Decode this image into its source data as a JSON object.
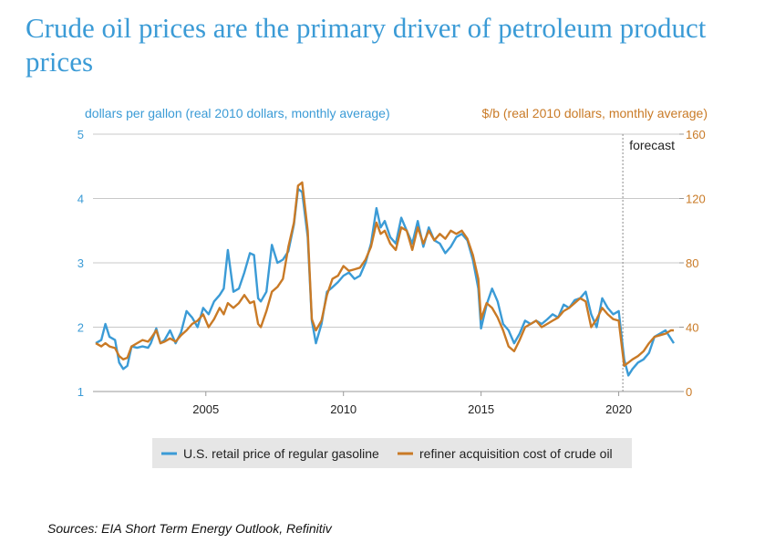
{
  "title": "Crude oil prices are the primary driver of petroleum product prices",
  "source": "Sources: EIA Short Term Energy Outlook, Refinitiv",
  "chart_data": {
    "type": "line",
    "ylabel_left": "dollars per gallon (real 2010 dollars, monthly average)",
    "ylabel_right": "$/b (real 2010 dollars, monthly average)",
    "y_left_lim": [
      1,
      5
    ],
    "y_left_ticks": [
      "1",
      "2",
      "3",
      "4",
      "5"
    ],
    "y_right_lim": [
      0,
      160
    ],
    "y_right_ticks": [
      "0",
      "40",
      "80",
      "120",
      "160"
    ],
    "xlim": [
      2000.9,
      2022.2
    ],
    "x_ticks": [
      "2005",
      "2010",
      "2015",
      "2020"
    ],
    "forecast_x": 2020.15,
    "forecast_label": "forecast",
    "grid": "horizontal",
    "legend_position": "bottom",
    "colors": {
      "left_axis": "#3b9bd6",
      "right_axis": "#c97a26",
      "gasoline": "#3b9bd6",
      "crude": "#c97a26",
      "grid": "#c8c8c8"
    },
    "series": [
      {
        "name": "U.S. retail price of regular gasoline",
        "axis": "left",
        "x": [
          2001.0,
          2001.2,
          2001.35,
          2001.5,
          2001.7,
          2001.85,
          2002.0,
          2002.15,
          2002.3,
          2002.5,
          2002.7,
          2002.9,
          2003.0,
          2003.2,
          2003.35,
          2003.5,
          2003.7,
          2003.9,
          2004.1,
          2004.3,
          2004.5,
          2004.7,
          2004.9,
          2005.1,
          2005.3,
          2005.5,
          2005.65,
          2005.8,
          2006.0,
          2006.2,
          2006.4,
          2006.6,
          2006.75,
          2006.9,
          2007.0,
          2007.2,
          2007.4,
          2007.6,
          2007.8,
          2008.0,
          2008.2,
          2008.35,
          2008.5,
          2008.7,
          2008.85,
          2009.0,
          2009.2,
          2009.4,
          2009.6,
          2009.8,
          2010.0,
          2010.2,
          2010.4,
          2010.6,
          2010.8,
          2011.0,
          2011.2,
          2011.35,
          2011.5,
          2011.7,
          2011.9,
          2012.1,
          2012.3,
          2012.5,
          2012.7,
          2012.9,
          2013.1,
          2013.3,
          2013.5,
          2013.7,
          2013.9,
          2014.1,
          2014.3,
          2014.5,
          2014.7,
          2014.9,
          2015.0,
          2015.2,
          2015.4,
          2015.6,
          2015.8,
          2016.0,
          2016.2,
          2016.4,
          2016.6,
          2016.8,
          2017.0,
          2017.2,
          2017.4,
          2017.6,
          2017.8,
          2018.0,
          2018.2,
          2018.4,
          2018.6,
          2018.8,
          2019.0,
          2019.2,
          2019.4,
          2019.6,
          2019.8,
          2020.0,
          2020.2,
          2020.35,
          2020.5,
          2020.7,
          2020.9,
          2021.1,
          2021.3,
          2021.5,
          2021.7,
          2021.9,
          2022.0
        ],
        "y": [
          1.75,
          1.8,
          2.05,
          1.85,
          1.8,
          1.45,
          1.35,
          1.4,
          1.7,
          1.68,
          1.7,
          1.68,
          1.75,
          1.98,
          1.75,
          1.8,
          1.95,
          1.75,
          1.92,
          2.25,
          2.15,
          2.0,
          2.3,
          2.2,
          2.4,
          2.5,
          2.6,
          3.2,
          2.55,
          2.6,
          2.85,
          3.15,
          3.12,
          2.45,
          2.4,
          2.55,
          3.28,
          3.0,
          3.05,
          3.18,
          3.6,
          4.15,
          4.1,
          3.4,
          2.1,
          1.75,
          2.05,
          2.55,
          2.62,
          2.7,
          2.8,
          2.85,
          2.75,
          2.8,
          3.0,
          3.3,
          3.85,
          3.55,
          3.65,
          3.4,
          3.3,
          3.7,
          3.5,
          3.3,
          3.65,
          3.25,
          3.55,
          3.35,
          3.3,
          3.15,
          3.25,
          3.4,
          3.45,
          3.35,
          3.05,
          2.6,
          1.98,
          2.35,
          2.6,
          2.4,
          2.05,
          1.95,
          1.75,
          1.9,
          2.1,
          2.05,
          2.1,
          2.05,
          2.12,
          2.2,
          2.15,
          2.35,
          2.3,
          2.42,
          2.45,
          2.55,
          2.2,
          2.0,
          2.45,
          2.3,
          2.2,
          2.25,
          1.5,
          1.25,
          1.35,
          1.45,
          1.5,
          1.6,
          1.85,
          1.9,
          1.95,
          1.82,
          1.75
        ]
      },
      {
        "name": "refiner acquisition cost of crude oil",
        "axis": "right",
        "x": [
          2001.0,
          2001.2,
          2001.35,
          2001.5,
          2001.7,
          2001.85,
          2002.0,
          2002.15,
          2002.3,
          2002.5,
          2002.7,
          2002.9,
          2003.0,
          2003.2,
          2003.35,
          2003.5,
          2003.7,
          2003.9,
          2004.1,
          2004.3,
          2004.5,
          2004.7,
          2004.9,
          2005.1,
          2005.3,
          2005.5,
          2005.65,
          2005.8,
          2006.0,
          2006.2,
          2006.4,
          2006.6,
          2006.75,
          2006.9,
          2007.0,
          2007.2,
          2007.4,
          2007.6,
          2007.8,
          2008.0,
          2008.2,
          2008.35,
          2008.5,
          2008.7,
          2008.85,
          2009.0,
          2009.2,
          2009.4,
          2009.6,
          2009.8,
          2010.0,
          2010.2,
          2010.4,
          2010.6,
          2010.8,
          2011.0,
          2011.2,
          2011.35,
          2011.5,
          2011.7,
          2011.9,
          2012.1,
          2012.3,
          2012.5,
          2012.7,
          2012.9,
          2013.1,
          2013.3,
          2013.5,
          2013.7,
          2013.9,
          2014.1,
          2014.3,
          2014.5,
          2014.7,
          2014.9,
          2015.0,
          2015.2,
          2015.4,
          2015.6,
          2015.8,
          2016.0,
          2016.2,
          2016.4,
          2016.6,
          2016.8,
          2017.0,
          2017.2,
          2017.4,
          2017.6,
          2017.8,
          2018.0,
          2018.2,
          2018.4,
          2018.6,
          2018.8,
          2019.0,
          2019.2,
          2019.4,
          2019.6,
          2019.8,
          2020.0,
          2020.2,
          2020.35,
          2020.5,
          2020.7,
          2020.9,
          2021.1,
          2021.3,
          2021.5,
          2021.7,
          2021.9,
          2022.0
        ],
        "y": [
          30,
          28,
          30,
          28,
          27,
          22,
          20,
          21,
          28,
          30,
          32,
          31,
          33,
          38,
          30,
          31,
          33,
          31,
          35,
          38,
          42,
          44,
          48,
          40,
          45,
          52,
          48,
          55,
          52,
          55,
          60,
          55,
          56,
          42,
          40,
          50,
          62,
          65,
          70,
          90,
          105,
          128,
          130,
          100,
          45,
          38,
          44,
          60,
          70,
          72,
          78,
          75,
          76,
          77,
          82,
          90,
          105,
          98,
          100,
          92,
          88,
          102,
          100,
          88,
          102,
          92,
          100,
          94,
          98,
          95,
          100,
          98,
          100,
          95,
          85,
          70,
          45,
          55,
          52,
          46,
          38,
          28,
          25,
          32,
          40,
          42,
          44,
          40,
          42,
          44,
          46,
          50,
          52,
          55,
          58,
          56,
          40,
          45,
          52,
          48,
          45,
          44,
          16,
          18,
          20,
          22,
          25,
          30,
          34,
          35,
          36,
          38,
          38
        ]
      }
    ]
  }
}
